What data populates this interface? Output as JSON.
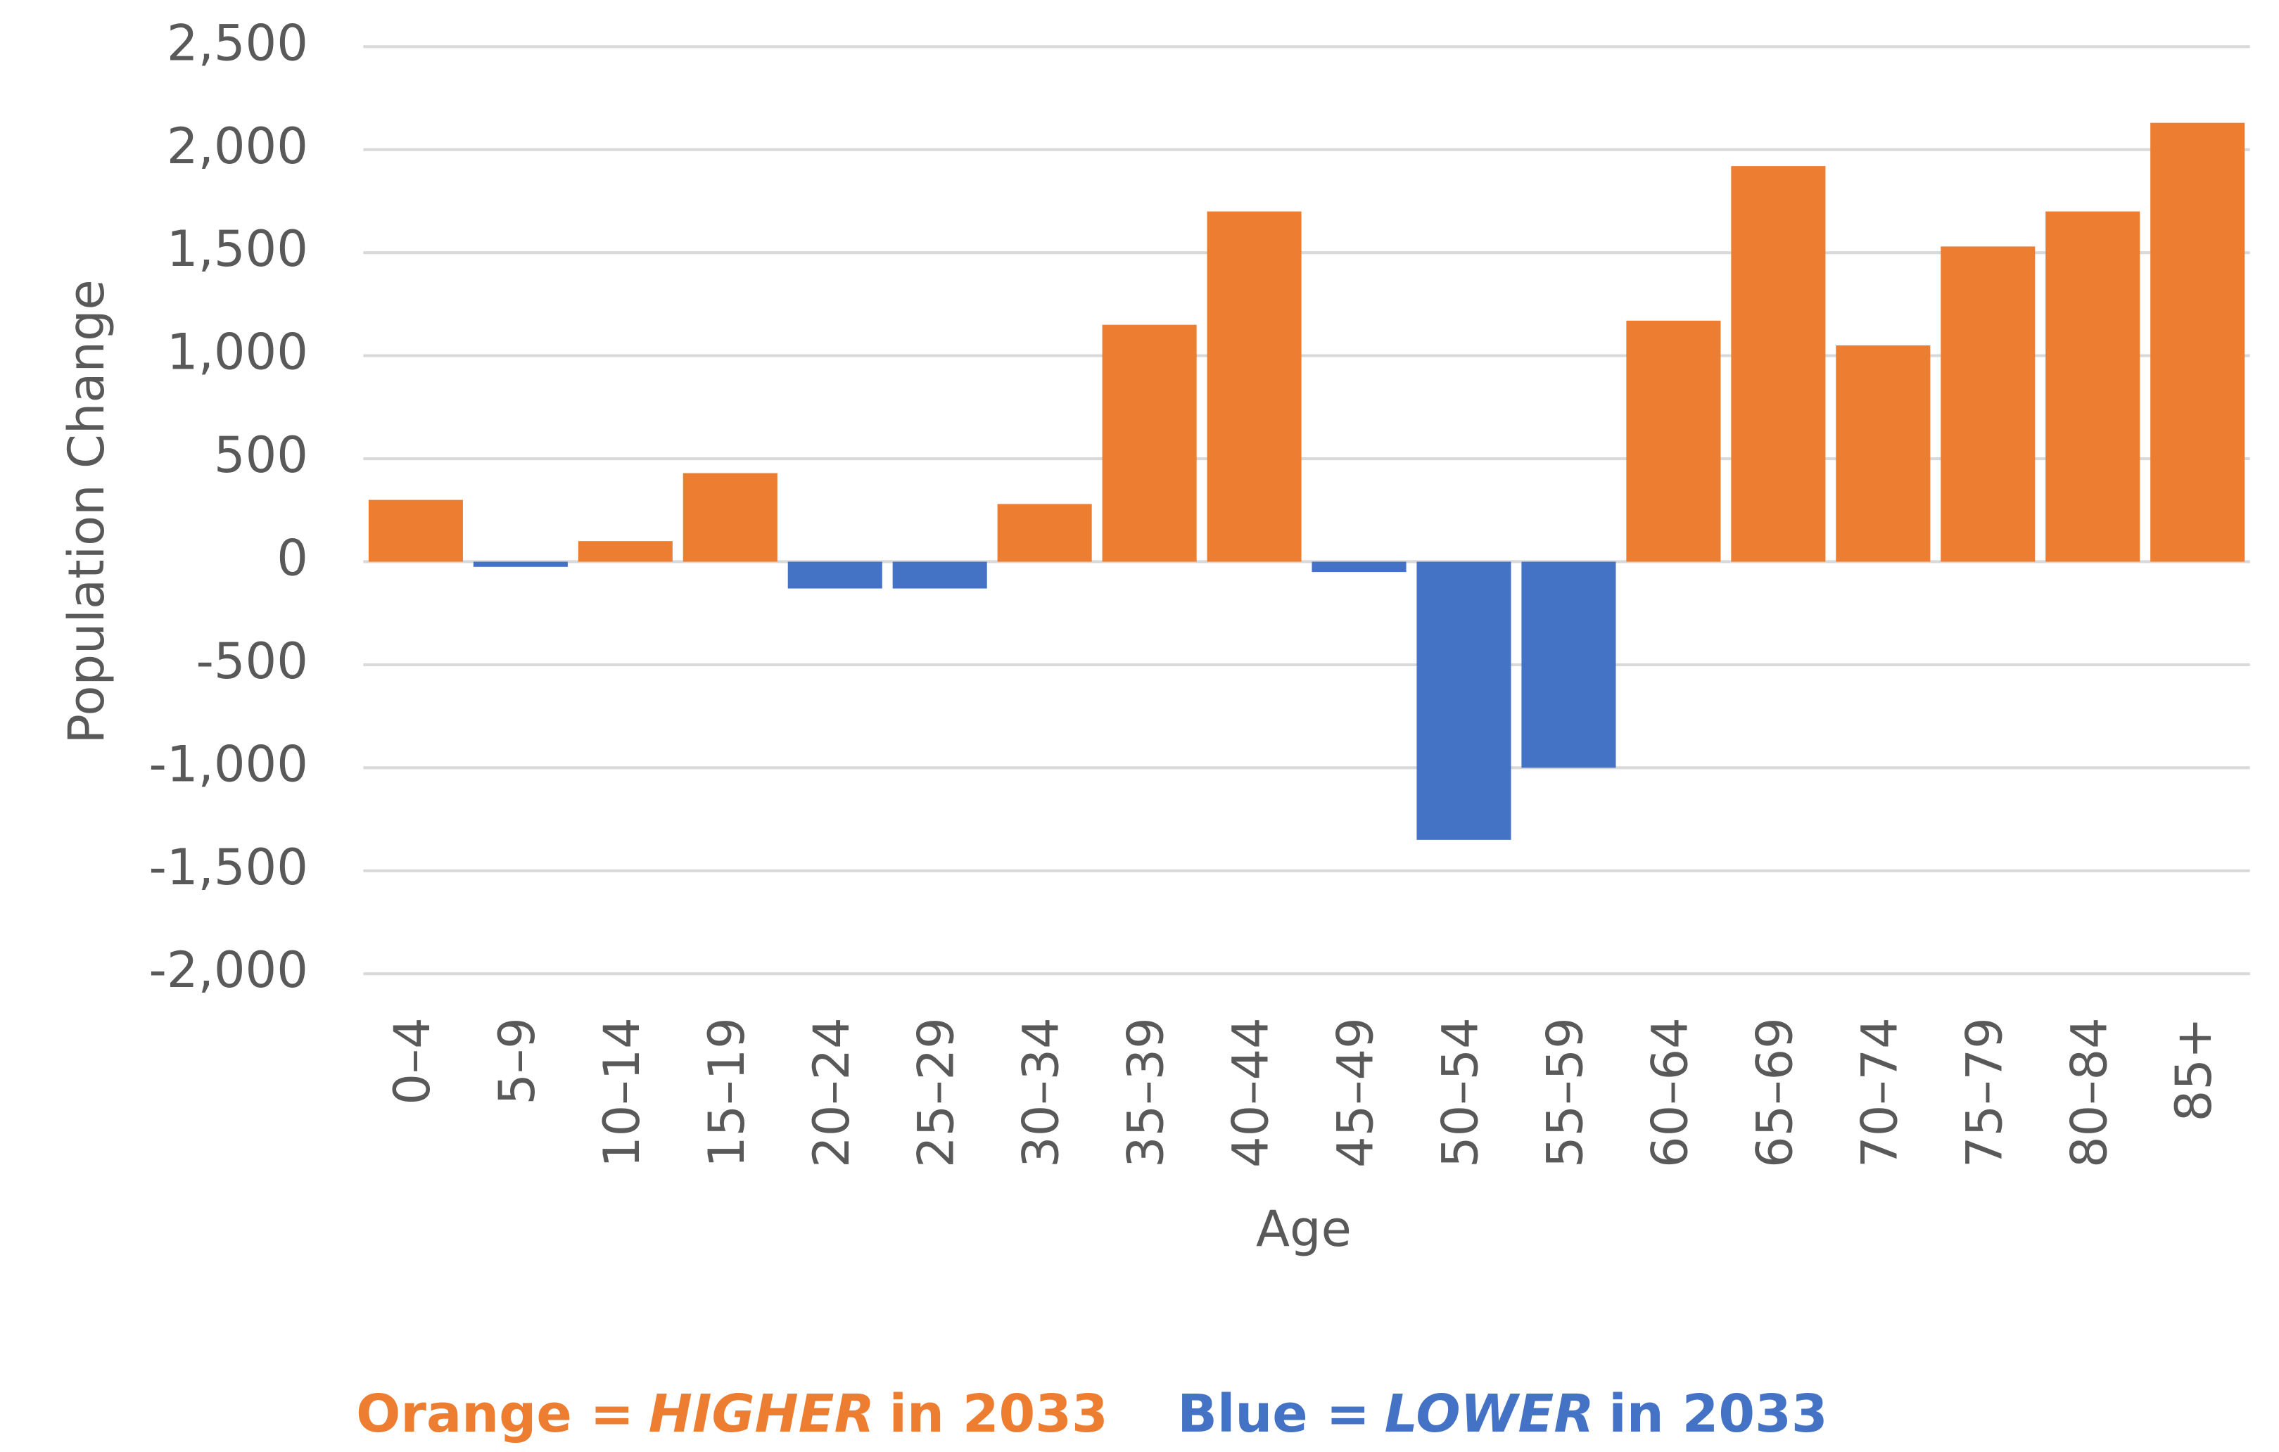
{
  "chart_data": {
    "type": "bar",
    "y_label": "Population Change",
    "x_label": "Age",
    "categories": [
      "0–4",
      "5–9",
      "10–14",
      "15–19",
      "20–24",
      "25–29",
      "30–34",
      "35–39",
      "40–44",
      "45–49",
      "50–54",
      "55–59",
      "60–64",
      "65–69",
      "70–74",
      "75–79",
      "80–84",
      "85+"
    ],
    "values": [
      300,
      -25,
      100,
      430,
      -130,
      -130,
      280,
      1150,
      1700,
      -50,
      -1350,
      -1000,
      1170,
      1920,
      1050,
      1530,
      1700,
      2130
    ],
    "positive_color": "#ed7d31",
    "negative_color": "#4472c4",
    "ylim": [
      -2000,
      2500
    ],
    "yticks": [
      {
        "value": -2000,
        "label": "-2,000"
      },
      {
        "value": -1500,
        "label": "-1,500"
      },
      {
        "value": -1000,
        "label": "-1,000"
      },
      -500,
      0,
      500,
      {
        "value": 1000,
        "label": "1,000"
      },
      {
        "value": 1500,
        "label": "1,500"
      },
      {
        "value": 2000,
        "label": "2,000"
      },
      {
        "value": 2500,
        "label": "2,500"
      }
    ],
    "grid": true,
    "notes": [
      {
        "parts": [
          "Orange =",
          "HIGHER",
          "in 2033"
        ],
        "color": "#ed7d31"
      },
      {
        "parts": [
          "Blue =",
          "LOWER",
          "in 2033"
        ],
        "color": "#4472c4"
      }
    ]
  }
}
